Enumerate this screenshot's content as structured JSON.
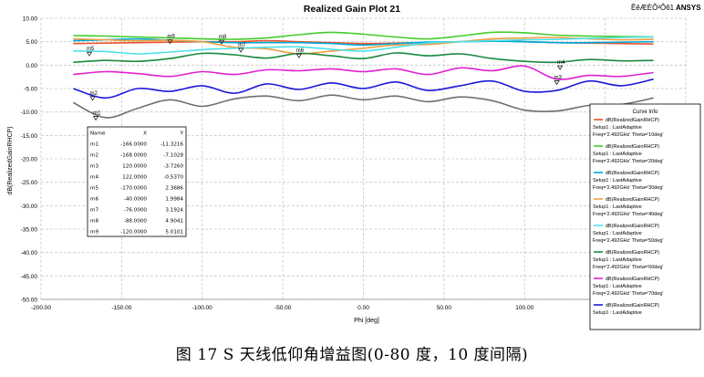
{
  "header": {
    "title": "Realized Gain Plot 21",
    "garbled_text": "ÊêÆÈÕ²Ô61",
    "brand": "ANSYS"
  },
  "caption": "图 17 S 天线低仰角增益图(0-80 度，10 度间隔)",
  "colors": {
    "grid": "#c8c8c8",
    "marker_table_border": "#000000",
    "legend_border": "#000000"
  },
  "marker_table": {
    "headers": [
      "Name",
      "X",
      "Y"
    ],
    "rows": [
      [
        "m1",
        "-166.0000",
        "-11.3216"
      ],
      [
        "m2",
        "-168.0000",
        "-7.1028"
      ],
      [
        "m3",
        "120.0000",
        "-3.7260"
      ],
      [
        "m4",
        "122.0000",
        "-0.5370"
      ],
      [
        "m5",
        "-170.0000",
        "2.3686"
      ],
      [
        "m6",
        "-40.0000",
        "1.9984"
      ],
      [
        "m7",
        "-76.0000",
        "3.1924"
      ],
      [
        "m8",
        "-88.0000",
        "4.9041"
      ],
      [
        "m9",
        "-120.0000",
        "5.0101"
      ]
    ]
  },
  "legend": {
    "title": "Curve Info",
    "entries": [
      {
        "line1": "dB(RealizedGainRHCP)",
        "line2": "Setup1 : LastAdaptive",
        "line3": "Freq='2.492GHz' Theta='10deg'",
        "color": "#e8542a"
      },
      {
        "line1": "dB(RealizedGainRHCP)",
        "line2": "Setup1 : LastAdaptive",
        "line3": "Freq='2.492GHz' Theta='20deg'",
        "color": "#44cc2a"
      },
      {
        "line1": "dB(RealizedGainRHCP)",
        "line2": "Setup1 : LastAdaptive",
        "line3": "Freq='2.492GHz' Theta='30deg'",
        "color": "#00a8d8"
      },
      {
        "line1": "dB(RealizedGainRHCP)",
        "line2": "Setup1 : LastAdaptive",
        "line3": "Freq='2.492GHz' Theta='40deg'",
        "color": "#f0a040"
      },
      {
        "line1": "dB(RealizedGainRHCP)",
        "line2": "Setup1 : LastAdaptive",
        "line3": "Freq='2.492GHz' Theta='50deg'",
        "color": "#50e0e8"
      },
      {
        "line1": "dB(RealizedGainRHCP)",
        "line2": "Setup1 : LastAdaptive",
        "line3": "Freq='2.492GHz' Theta='60deg'",
        "color": "#1a8a40"
      },
      {
        "line1": "dB(RealizedGainRHCP)",
        "line2": "Setup1 : LastAdaptive",
        "line3": "Freq='2.492GHz' Theta='70deg'",
        "color": "#e020d0"
      },
      {
        "line1": "dB(RealizedGainRHCP)",
        "line2": "Setup1 : LastAdaptive",
        "line3": "",
        "color": "#1a1ad8"
      }
    ]
  },
  "chart_data": {
    "type": "line",
    "title": "Realized Gain Plot 21",
    "xlabel": "Phi [deg]",
    "ylabel": "dB(RealizedGainRHCP)",
    "xlim": [
      -200,
      200
    ],
    "ylim": [
      -50,
      10
    ],
    "grid": true,
    "legend_position": "right",
    "x_ticks": [
      -200,
      -150,
      -100,
      -50,
      0,
      50,
      100,
      150,
      200
    ],
    "x_tick_labels": [
      "-200.00",
      "-150.00",
      "-100.00",
      "-50.00",
      "0.00",
      "50.00",
      "100.00",
      "150.00",
      "200.00"
    ],
    "y_ticks": [
      10,
      5,
      0,
      -5,
      -10,
      -15,
      -20,
      -25,
      -30,
      -35,
      -40,
      -45,
      -50
    ],
    "y_tick_labels": [
      "10.00",
      "5.00",
      "0.00",
      "-5.00",
      "-10.00",
      "-15.00",
      "-20.00",
      "-25.00",
      "-30.00",
      "-35.00",
      "-40.00",
      "-45.00",
      "-50.00"
    ],
    "x": [
      -180,
      -160,
      -140,
      -120,
      -100,
      -80,
      -60,
      -40,
      -20,
      0,
      20,
      40,
      60,
      80,
      100,
      120,
      140,
      160,
      180
    ],
    "series": [
      {
        "color": "#e8542a",
        "values": [
          4.6,
          4.7,
          4.8,
          4.9,
          5.0,
          5.0,
          5.2,
          5.0,
          4.8,
          4.6,
          4.7,
          4.8,
          5.0,
          5.2,
          5.0,
          4.8,
          4.7,
          4.6,
          4.5
        ]
      },
      {
        "color": "#44cc2a",
        "values": [
          6.3,
          6.2,
          6.0,
          5.8,
          5.6,
          5.5,
          5.8,
          6.5,
          7.0,
          6.6,
          6.0,
          5.6,
          6.2,
          7.0,
          6.9,
          6.4,
          6.2,
          6.1,
          6.0
        ]
      },
      {
        "color": "#00a8d8",
        "values": [
          5.2,
          5.4,
          5.6,
          5.3,
          5.0,
          4.8,
          4.8,
          4.8,
          4.6,
          4.3,
          4.6,
          4.9,
          5.0,
          5.1,
          5.0,
          4.8,
          4.8,
          4.9,
          5.0
        ]
      },
      {
        "color": "#f0a040",
        "values": [
          5.6,
          5.4,
          5.2,
          5.3,
          5.0,
          3.8,
          3.5,
          2.4,
          3.0,
          3.6,
          4.3,
          4.4,
          5.0,
          5.6,
          5.8,
          5.9,
          5.6,
          5.4,
          5.5
        ]
      },
      {
        "color": "#50e0e8",
        "values": [
          3.0,
          2.9,
          2.4,
          2.8,
          3.3,
          3.6,
          3.8,
          3.9,
          3.4,
          3.0,
          3.8,
          4.7,
          5.0,
          5.2,
          5.4,
          5.5,
          5.7,
          5.9,
          6.0
        ]
      },
      {
        "color": "#1a8a40",
        "values": [
          0.6,
          1.0,
          0.8,
          1.4,
          2.5,
          2.2,
          1.5,
          2.5,
          2.0,
          1.4,
          2.6,
          2.0,
          2.4,
          1.4,
          0.8,
          0.6,
          1.2,
          0.9,
          1.0
        ]
      },
      {
        "color": "#e020d0",
        "values": [
          -2.0,
          -1.4,
          -1.8,
          -2.4,
          -1.4,
          -2.0,
          -1.0,
          -1.2,
          -0.8,
          -1.4,
          -0.8,
          -2.0,
          -0.6,
          -1.2,
          -0.2,
          -3.0,
          -2.2,
          -2.4,
          -1.6
        ]
      },
      {
        "color": "#1a1ad8",
        "values": [
          -5.0,
          -7.0,
          -5.0,
          -5.6,
          -4.4,
          -6.0,
          -4.0,
          -5.2,
          -3.8,
          -5.0,
          -3.6,
          -5.4,
          -4.4,
          -3.4,
          -5.6,
          -5.4,
          -3.4,
          -4.4,
          -3.0
        ]
      },
      {
        "color": "#707070",
        "values": [
          -8.0,
          -11.2,
          -9.2,
          -7.4,
          -8.8,
          -7.2,
          -6.6,
          -7.6,
          -6.4,
          -7.4,
          -6.6,
          -7.8,
          -6.8,
          -7.6,
          -9.6,
          -9.8,
          -8.6,
          -8.4,
          -7.0
        ]
      }
    ],
    "markers": [
      {
        "name": "m1",
        "x": -166,
        "y": -11.3216
      },
      {
        "name": "m2",
        "x": -168,
        "y": -7.1028
      },
      {
        "name": "m3",
        "x": 120,
        "y": -3.726
      },
      {
        "name": "m4",
        "x": 122,
        "y": -0.537
      },
      {
        "name": "m5",
        "x": -170,
        "y": 2.3686
      },
      {
        "name": "m6",
        "x": -40,
        "y": 1.9984
      },
      {
        "name": "m7",
        "x": -76,
        "y": 3.1924
      },
      {
        "name": "m8",
        "x": -88,
        "y": 4.9041
      },
      {
        "name": "m9",
        "x": -120,
        "y": 5.0101
      }
    ]
  }
}
